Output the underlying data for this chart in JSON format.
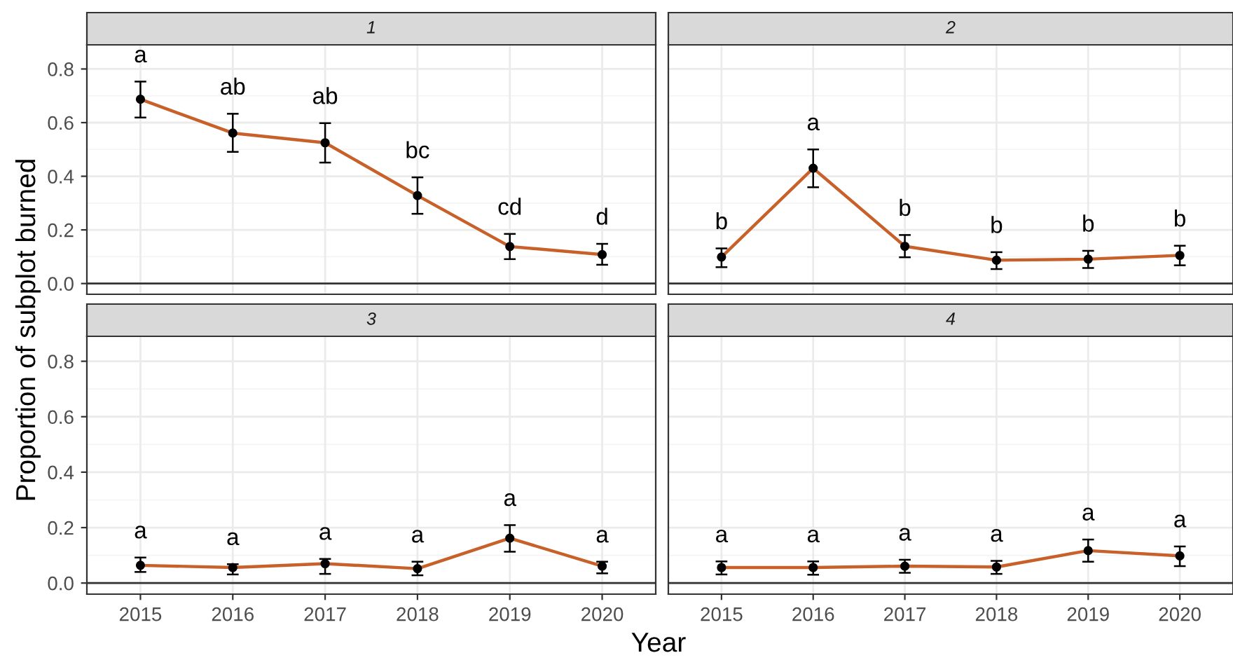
{
  "chart_data": [
    {
      "type": "line",
      "title": "1",
      "xlabel": "Year",
      "ylabel": "Proportion of subplot burned",
      "categories": [
        "2015",
        "2016",
        "2017",
        "2018",
        "2019",
        "2020"
      ],
      "series": [
        {
          "color": "#c8602a",
          "values": [
            0.687,
            0.561,
            0.525,
            0.328,
            0.138,
            0.108
          ],
          "errors": [
            [
              0.619,
              0.753
            ],
            [
              0.491,
              0.633
            ],
            [
              0.451,
              0.598
            ],
            [
              0.26,
              0.396
            ],
            [
              0.091,
              0.185
            ],
            [
              0.07,
              0.148
            ]
          ]
        }
      ],
      "annotations": [
        "a",
        "ab",
        "ab",
        "bc",
        "cd",
        "d"
      ],
      "ylim": [
        -0.04,
        0.89
      ],
      "yticks": [
        {
          "value": 0,
          "label": "0.0"
        },
        0.2,
        0.4,
        0.6,
        0.8
      ],
      "ref_lines": [
        {
          "axis": "y",
          "value": 0,
          "color": "#333333"
        }
      ],
      "grid": true,
      "marker": "circle",
      "line_style": "solid",
      "tick_labels": "y"
    },
    {
      "type": "line",
      "title": "2",
      "categories": [
        "2015",
        "2016",
        "2017",
        "2018",
        "2019",
        "2020"
      ],
      "series": [
        {
          "color": "#c8602a",
          "values": [
            0.099,
            0.43,
            0.139,
            0.087,
            0.091,
            0.105
          ],
          "errors": [
            [
              0.061,
              0.131
            ],
            [
              0.359,
              0.5
            ],
            [
              0.098,
              0.181
            ],
            [
              0.054,
              0.117
            ],
            [
              0.058,
              0.122
            ],
            [
              0.068,
              0.141
            ]
          ]
        }
      ],
      "annotations": [
        "b",
        "a",
        "b",
        "b",
        "b",
        "b"
      ],
      "ylim": [
        -0.04,
        0.89
      ],
      "yticks": [
        0,
        0.2,
        0.4,
        0.6,
        0.8
      ],
      "ref_lines": [
        {
          "axis": "y",
          "value": 0,
          "color": "#333333"
        }
      ],
      "grid": true,
      "marker": "circle",
      "line_style": "solid",
      "tick_labels": false
    },
    {
      "type": "line",
      "title": "3",
      "categories": [
        "2015",
        "2016",
        "2017",
        "2018",
        "2019",
        "2020"
      ],
      "series": [
        {
          "color": "#c8602a",
          "values": [
            0.064,
            0.056,
            0.07,
            0.052,
            0.162,
            0.061
          ],
          "errors": [
            [
              0.04,
              0.092
            ],
            [
              0.031,
              0.068
            ],
            [
              0.033,
              0.087
            ],
            [
              0.028,
              0.077
            ],
            [
              0.113,
              0.209
            ],
            [
              0.035,
              0.077
            ]
          ]
        }
      ],
      "annotations": [
        "a",
        "a",
        "a",
        "a",
        "a",
        "a"
      ],
      "ylim": [
        -0.04,
        0.89
      ],
      "yticks": [
        {
          "value": 0,
          "label": "0.0"
        },
        0.2,
        0.4,
        0.6,
        0.8
      ],
      "ref_lines": [
        {
          "axis": "y",
          "value": 0,
          "color": "#333333"
        }
      ],
      "grid": true,
      "marker": "circle",
      "line_style": "solid"
    },
    {
      "type": "line",
      "title": "4",
      "categories": [
        "2015",
        "2016",
        "2017",
        "2018",
        "2019",
        "2020"
      ],
      "series": [
        {
          "color": "#c8602a",
          "values": [
            0.056,
            0.056,
            0.061,
            0.058,
            0.117,
            0.098
          ],
          "errors": [
            [
              0.031,
              0.078
            ],
            [
              0.03,
              0.078
            ],
            [
              0.037,
              0.084
            ],
            [
              0.033,
              0.08
            ],
            [
              0.077,
              0.157
            ],
            [
              0.061,
              0.132
            ]
          ]
        }
      ],
      "annotations": [
        "a",
        "a",
        "a",
        "a",
        "a",
        "a"
      ],
      "ylim": [
        -0.04,
        0.89
      ],
      "yticks": [
        0,
        0.2,
        0.4,
        0.6,
        0.8
      ],
      "ref_lines": [
        {
          "axis": "y",
          "value": 0,
          "color": "#333333"
        }
      ],
      "grid": true,
      "marker": "circle",
      "line_style": "solid",
      "tick_labels": "x"
    }
  ]
}
